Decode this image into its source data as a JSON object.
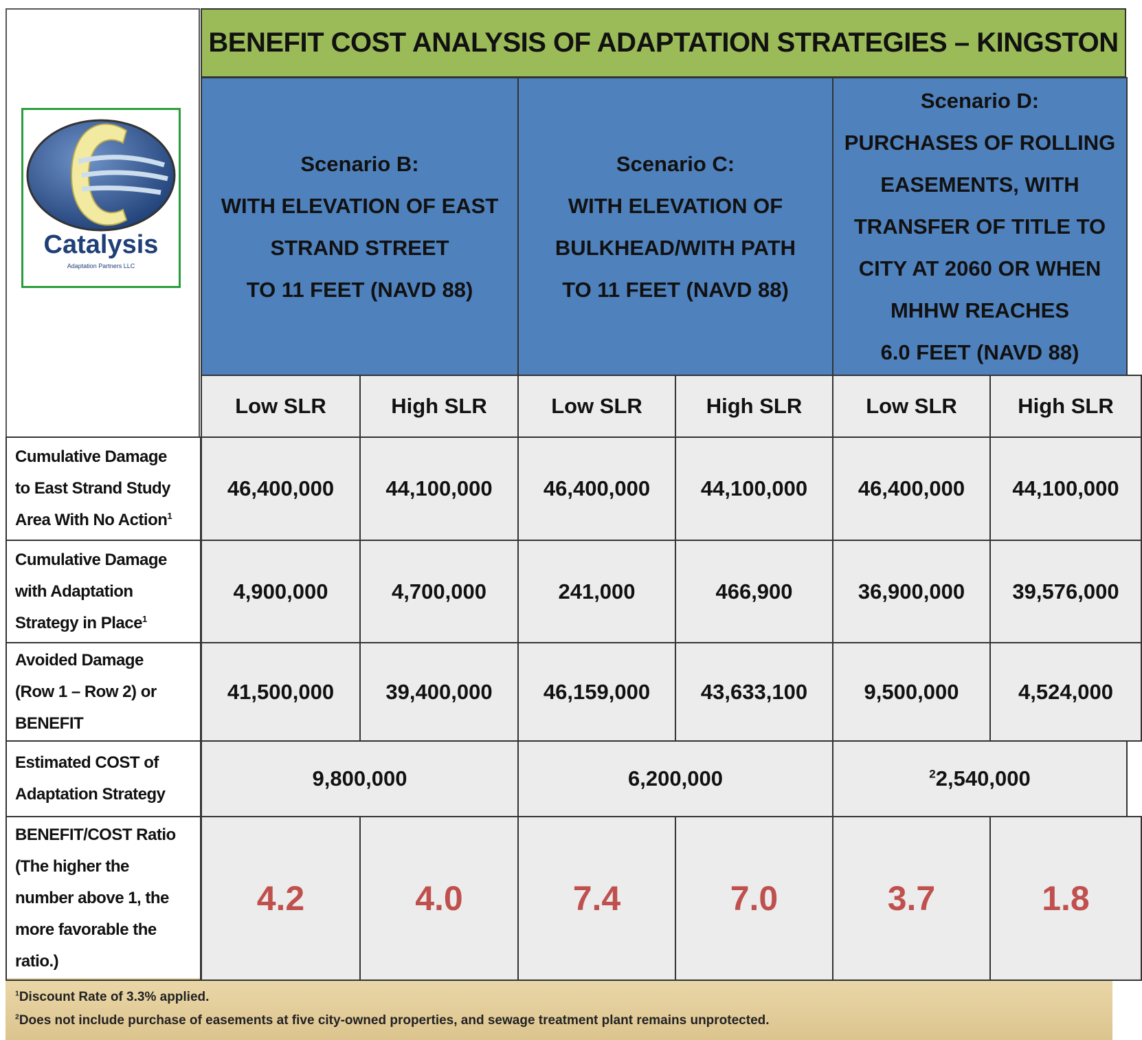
{
  "title": "BENEFIT COST ANALYSIS OF ADAPTATION STRATEGIES – KINGSTON",
  "logo": {
    "name": "Catalysis",
    "subtitle": "Adaptation Partners LLC"
  },
  "scenarios": [
    {
      "label": "Scenario B:",
      "lines": [
        "WITH ELEVATION OF EAST",
        "STRAND STREET",
        "TO 11 FEET (NAVD 88)"
      ]
    },
    {
      "label": "Scenario C:",
      "lines": [
        "WITH ELEVATION OF",
        "BULKHEAD/WITH PATH",
        "TO 11 FEET (NAVD 88)"
      ]
    },
    {
      "label": "Scenario D:",
      "lines": [
        "PURCHASES OF ROLLING",
        "EASEMENTS, WITH",
        "TRANSFER OF TITLE TO",
        "CITY AT 2060 OR WHEN",
        "MHHW REACHES",
        "6.0 FEET (NAVD 88)"
      ]
    }
  ],
  "subheaders": [
    "Low SLR",
    "High SLR",
    "Low SLR",
    "High SLR",
    "Low SLR",
    "High SLR"
  ],
  "rows": [
    {
      "label": [
        "Cumulative Damage",
        "to East Strand Study",
        "Area With No Action"
      ],
      "note": "1",
      "values": [
        "46,400,000",
        "44,100,000",
        "46,400,000",
        "44,100,000",
        "46,400,000",
        "44,100,000"
      ]
    },
    {
      "label": [
        "Cumulative Damage",
        "with Adaptation",
        "Strategy in Place"
      ],
      "note": "1",
      "values": [
        "4,900,000",
        "4,700,000",
        "241,000",
        "466,900",
        "36,900,000",
        "39,576,000"
      ]
    },
    {
      "label": [
        "Avoided Damage",
        "(Row 1 – Row 2) or",
        "BENEFIT"
      ],
      "values": [
        "41,500,000",
        "39,400,000",
        "46,159,000",
        "43,633,100",
        "9,500,000",
        "4,524,000"
      ]
    },
    {
      "label": [
        "Estimated COST of",
        "Adaptation Strategy"
      ],
      "costs": [
        {
          "value": "9,800,000"
        },
        {
          "value": "6,200,000"
        },
        {
          "note": "2",
          "value": "2,540,000"
        }
      ]
    },
    {
      "label": [
        "BENEFIT/COST Ratio",
        "(The higher the",
        "number above 1, the",
        "more favorable the",
        "ratio.)"
      ],
      "values": [
        "4.2",
        "4.0",
        "7.4",
        "7.0",
        "3.7",
        "1.8"
      ]
    }
  ],
  "footnotes": [
    {
      "mark": "1",
      "text": "Discount Rate of 3.3% applied."
    },
    {
      "mark": "2",
      "text": "Does not include purchase of easements at five city-owned properties, and sewage treatment plant remains unprotected."
    }
  ]
}
